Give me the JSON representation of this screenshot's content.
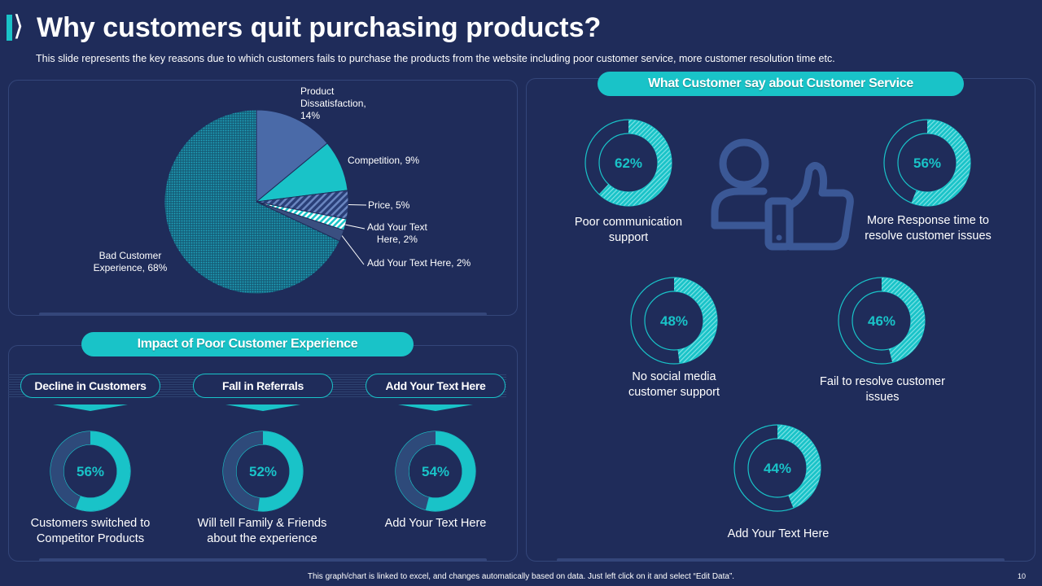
{
  "header": {
    "title": "Why customers quit purchasing products?",
    "subtitle": "This slide represents the key reasons due to which customers fails to purchase the products from the website including poor customer service, more customer resolution time etc."
  },
  "colors": {
    "background": "#1f2c5a",
    "accent": "#19c3c8",
    "panel_border": "#34467a",
    "donut_track": "#2e4a7a",
    "pie_blue": "#4a6aa8"
  },
  "chart_data": [
    {
      "type": "pie",
      "title": "",
      "slices": [
        {
          "label": "Product Dissatisfaction",
          "value": 14,
          "display": "Product\nDissatisfaction,\n14%"
        },
        {
          "label": "Competition",
          "value": 9,
          "display": "Competition, 9%"
        },
        {
          "label": "Price",
          "value": 5,
          "display": "Price, 5%"
        },
        {
          "label": "Add Your Text Here",
          "value": 2,
          "display": "Add Your Text\nHere, 2%"
        },
        {
          "label": "Add Your Text Here",
          "value": 2,
          "display": "Add Your Text Here, 2%"
        },
        {
          "label": "Bad Customer Experience",
          "value": 68,
          "display": "Bad Customer\nExperience, 68%"
        }
      ]
    },
    {
      "type": "donut",
      "title": "What Customer say about Customer Service",
      "items": [
        {
          "value": 62,
          "label": "62%",
          "caption": "Poor communication support"
        },
        {
          "value": 56,
          "label": "56%",
          "caption": "More Response time to resolve customer issues"
        },
        {
          "value": 48,
          "label": "48%",
          "caption": "No social media customer support"
        },
        {
          "value": 46,
          "label": "46%",
          "caption": "Fail to resolve customer issues"
        },
        {
          "value": 44,
          "label": "44%",
          "caption": "Add Your Text Here"
        }
      ]
    },
    {
      "type": "donut",
      "title": "Impact of Poor Customer Experience",
      "items": [
        {
          "heading": "Decline in Customers",
          "value": 56,
          "label": "56%",
          "caption": "Customers switched to Competitor Products"
        },
        {
          "heading": "Fall in Referrals",
          "value": 52,
          "label": "52%",
          "caption": "Will tell Family & Friends about the experience"
        },
        {
          "heading": "Add Your Text Here",
          "value": 54,
          "label": "54%",
          "caption": "Add Your Text Here"
        }
      ]
    }
  ],
  "footer": {
    "note": "This graph/chart is linked to excel, and changes automatically based on data. Just left click on it and select “Edit Data”.",
    "page_number": "10"
  },
  "icons": {
    "title": "chevron-right-icon",
    "service": "user-thumbs-up-icon"
  }
}
